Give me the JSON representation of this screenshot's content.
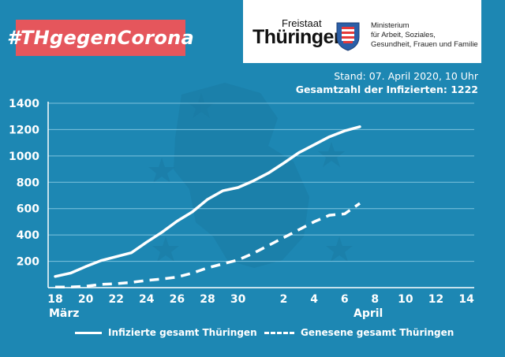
{
  "hashtag": "#THgegenCorona",
  "logo": {
    "freistaat": "Freistaat",
    "land": "Thüringen",
    "ministry_lines": [
      "Ministerium",
      "für Arbeit, Soziales,",
      "Gesundheit, Frauen und Familie"
    ]
  },
  "stand": "Stand: 07. April 2020, 10 Uhr",
  "total": "Gesamtzahl der Infizierten: 1222",
  "colors": {
    "background": "#1d87b3",
    "banner": "#e5565c",
    "line": "#ffffff",
    "grid": "#7ec3de"
  },
  "chart_data": {
    "type": "line",
    "title": "",
    "xlabel": "",
    "ylabel": "",
    "ylim": [
      0,
      1400
    ],
    "y_ticks": [
      200,
      400,
      600,
      800,
      1000,
      1200,
      1400
    ],
    "x_ticks": [
      {
        "day": 0,
        "label": "18"
      },
      {
        "day": 2,
        "label": "20"
      },
      {
        "day": 4,
        "label": "22"
      },
      {
        "day": 6,
        "label": "24"
      },
      {
        "day": 8,
        "label": "26"
      },
      {
        "day": 10,
        "label": "28"
      },
      {
        "day": 12,
        "label": "30"
      },
      {
        "day": 15,
        "label": "2"
      },
      {
        "day": 17,
        "label": "4"
      },
      {
        "day": 19,
        "label": "6"
      },
      {
        "day": 21,
        "label": "8"
      },
      {
        "day": 23,
        "label": "10"
      },
      {
        "day": 25,
        "label": "12"
      },
      {
        "day": 27,
        "label": "14"
      }
    ],
    "month_labels": [
      {
        "day": 0,
        "label": "März"
      },
      {
        "day": 20,
        "label": "April"
      }
    ],
    "xlim": [
      -0.5,
      27.5
    ],
    "grid": "horizontal",
    "series": [
      {
        "name": "Infizierte gesamt Thüringen",
        "style": "solid",
        "x": [
          0,
          1,
          2,
          3,
          4,
          5,
          6,
          7,
          8,
          9,
          10,
          11,
          12,
          13,
          14,
          15,
          16,
          17,
          18,
          19,
          20
        ],
        "values": [
          85,
          110,
          160,
          205,
          235,
          265,
          345,
          420,
          505,
          575,
          670,
          735,
          760,
          810,
          870,
          945,
          1025,
          1085,
          1145,
          1190,
          1222
        ]
      },
      {
        "name": "Genesene gesamt Thüringen",
        "style": "dashed",
        "x": [
          0,
          1,
          2,
          3,
          4,
          5,
          6,
          7,
          8,
          9,
          10,
          11,
          12,
          13,
          14,
          15,
          16,
          17,
          18,
          19,
          20
        ],
        "values": [
          5,
          5,
          10,
          25,
          30,
          40,
          55,
          65,
          80,
          110,
          150,
          180,
          210,
          260,
          320,
          380,
          440,
          500,
          550,
          560,
          640
        ]
      }
    ]
  }
}
